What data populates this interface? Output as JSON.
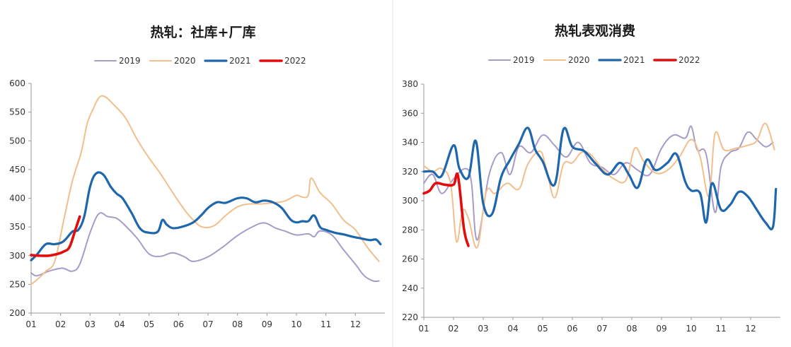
{
  "chart_data": [
    {
      "id": "left",
      "type": "line",
      "title": "热轧：社库+厂库",
      "xlabel": "",
      "ylabel": "",
      "ylim": [
        200,
        600
      ],
      "yticks": [
        "600",
        "550",
        "500",
        "450",
        "400",
        "350",
        "300",
        "250",
        "200"
      ],
      "xticks": [
        "01",
        "02",
        "03",
        "04",
        "05",
        "06",
        "07",
        "08",
        "09",
        "10",
        "11",
        "12"
      ],
      "legend_position": "top",
      "grid": false,
      "series": [
        {
          "name": "2019",
          "color": "#a79bc8",
          "width": 2,
          "x": [
            1,
            1.2,
            1.6,
            2.0,
            2.15,
            2.4,
            2.65,
            3.0,
            3.3,
            3.6,
            3.9,
            4.2,
            4.6,
            5.0,
            5.4,
            5.8,
            6.2,
            6.5,
            7.0,
            7.5,
            8.0,
            8.5,
            8.9,
            9.3,
            9.6,
            10.0,
            10.4,
            10.6,
            10.8,
            11.2,
            11.6,
            12.0,
            12.3,
            12.6,
            12.8
          ],
          "y": [
            270,
            265,
            273,
            278,
            277,
            273,
            285,
            340,
            373,
            368,
            365,
            352,
            330,
            303,
            299,
            305,
            298,
            290,
            298,
            315,
            335,
            350,
            357,
            348,
            343,
            336,
            338,
            333,
            343,
            336,
            310,
            285,
            265,
            256,
            256
          ]
        },
        {
          "name": "2020",
          "color": "#f2bf8c",
          "width": 2,
          "x": [
            1,
            1.2,
            1.5,
            1.8,
            2.1,
            2.4,
            2.7,
            2.9,
            3.1,
            3.3,
            3.5,
            3.8,
            4.2,
            4.6,
            5.0,
            5.4,
            5.8,
            6.2,
            6.5,
            6.8,
            7.2,
            7.6,
            8.0,
            8.4,
            8.8,
            9.2,
            9.6,
            10.0,
            10.2,
            10.4,
            10.5,
            10.8,
            11.2,
            11.6,
            12.0,
            12.4,
            12.8
          ],
          "y": [
            250,
            258,
            273,
            290,
            360,
            430,
            480,
            530,
            555,
            575,
            577,
            563,
            540,
            502,
            470,
            442,
            410,
            380,
            362,
            350,
            352,
            370,
            385,
            390,
            390,
            392,
            395,
            405,
            402,
            405,
            435,
            410,
            390,
            362,
            345,
            315,
            290
          ]
        },
        {
          "name": "2021",
          "color": "#1f67ad",
          "width": 3.2,
          "x": [
            1,
            1.2,
            1.5,
            1.8,
            2.1,
            2.4,
            2.6,
            2.8,
            3.0,
            3.2,
            3.45,
            3.7,
            3.9,
            4.1,
            4.4,
            4.7,
            5.0,
            5.3,
            5.45,
            5.6,
            5.8,
            6.1,
            6.5,
            6.8,
            7.0,
            7.3,
            7.6,
            8.0,
            8.3,
            8.6,
            8.9,
            9.2,
            9.5,
            9.8,
            10.0,
            10.2,
            10.4,
            10.6,
            10.8,
            11.0,
            11.3,
            11.6,
            11.9,
            12.2,
            12.5,
            12.7,
            12.85
          ],
          "y": [
            292,
            302,
            320,
            320,
            325,
            342,
            345,
            368,
            420,
            443,
            441,
            420,
            408,
            400,
            375,
            347,
            340,
            342,
            362,
            354,
            348,
            350,
            358,
            372,
            383,
            393,
            392,
            400,
            400,
            393,
            396,
            393,
            383,
            363,
            358,
            360,
            360,
            370,
            350,
            345,
            340,
            337,
            333,
            330,
            327,
            328,
            320
          ]
        },
        {
          "name": "2022",
          "color": "#e30b0b",
          "width": 3.6,
          "x": [
            1,
            1.3,
            1.6,
            1.9,
            2.1,
            2.3,
            2.5,
            2.65
          ],
          "y": [
            301,
            300,
            300,
            303,
            307,
            315,
            345,
            368
          ]
        }
      ]
    },
    {
      "id": "right",
      "type": "line",
      "title": "热轧表观消费",
      "xlabel": "",
      "ylabel": "",
      "ylim": [
        220,
        380
      ],
      "yticks": [
        "380",
        "360",
        "340",
        "320",
        "300",
        "280",
        "260",
        "240",
        "220"
      ],
      "xticks": [
        "01",
        "02",
        "03",
        "04",
        "05",
        "06",
        "07",
        "08",
        "09",
        "10",
        "11",
        "12"
      ],
      "legend_position": "top",
      "grid": false,
      "series": [
        {
          "name": "2019",
          "color": "#a79bc8",
          "width": 2,
          "x": [
            1,
            1.3,
            1.6,
            2.0,
            2.4,
            2.6,
            2.8,
            3.2,
            3.6,
            3.9,
            4.2,
            4.6,
            5.0,
            5.4,
            5.8,
            6.2,
            6.6,
            7.0,
            7.4,
            7.8,
            8.2,
            8.6,
            9.0,
            9.4,
            9.8,
            10.0,
            10.2,
            10.5,
            10.8,
            11.0,
            11.3,
            11.6,
            11.9,
            12.2,
            12.5,
            12.75
          ],
          "y": [
            312,
            318,
            305,
            315,
            322,
            313,
            273,
            318,
            333,
            318,
            337,
            333,
            345,
            338,
            330,
            340,
            326,
            323,
            318,
            326,
            321,
            318,
            336,
            345,
            343,
            351,
            335,
            332,
            292,
            323,
            333,
            336,
            347,
            342,
            337,
            340
          ]
        },
        {
          "name": "2020",
          "color": "#f2bf8c",
          "width": 2,
          "x": [
            1,
            1.3,
            1.6,
            1.9,
            2.1,
            2.3,
            2.5,
            2.8,
            3.1,
            3.4,
            3.8,
            4.2,
            4.5,
            4.9,
            5.1,
            5.4,
            5.7,
            6.0,
            6.3,
            6.6,
            7.0,
            7.4,
            7.8,
            8.1,
            8.4,
            8.8,
            9.2,
            9.6,
            10.0,
            10.3,
            10.6,
            10.8,
            11.1,
            11.5,
            11.9,
            12.2,
            12.5,
            12.8
          ],
          "y": [
            324,
            320,
            322,
            312,
            272,
            293,
            288,
            268,
            306,
            305,
            312,
            308,
            325,
            334,
            324,
            302,
            325,
            326,
            333,
            332,
            322,
            315,
            314,
            336,
            327,
            319,
            321,
            330,
            342,
            330,
            303,
            346,
            335,
            336,
            338,
            341,
            353,
            335
          ]
        },
        {
          "name": "2021",
          "color": "#1f67ad",
          "width": 3.2,
          "x": [
            1,
            1.3,
            1.6,
            2.0,
            2.2,
            2.5,
            2.75,
            3.0,
            3.3,
            3.6,
            3.9,
            4.2,
            4.5,
            4.75,
            5.0,
            5.4,
            5.7,
            6.0,
            6.4,
            6.8,
            7.2,
            7.6,
            7.9,
            8.2,
            8.5,
            8.8,
            9.2,
            9.5,
            9.8,
            10.0,
            10.3,
            10.5,
            10.7,
            11.0,
            11.3,
            11.6,
            11.9,
            12.2,
            12.5,
            12.75,
            12.85
          ],
          "y": [
            320,
            320,
            317,
            338,
            322,
            316,
            341,
            298,
            291,
            316,
            328,
            339,
            350,
            335,
            327,
            311,
            349,
            337,
            334,
            325,
            318,
            326,
            318,
            309,
            328,
            321,
            326,
            332,
            313,
            307,
            305,
            285,
            312,
            294,
            297,
            306,
            303,
            294,
            285,
            282,
            308
          ]
        },
        {
          "name": "2022",
          "color": "#e30b0b",
          "width": 3.6,
          "x": [
            1,
            1.2,
            1.4,
            1.7,
            2.0,
            2.15,
            2.35,
            2.5
          ],
          "y": [
            305,
            307,
            312,
            311,
            311,
            317,
            281,
            269
          ]
        }
      ]
    }
  ]
}
